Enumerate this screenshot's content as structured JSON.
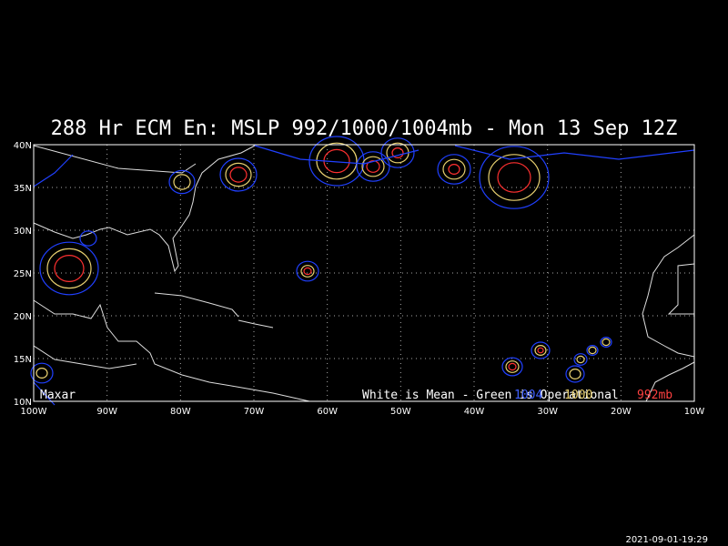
{
  "title": "288 Hr ECM En: MSLP 992/1000/1004mb - Mon 13 Sep 12Z",
  "map": {
    "lon_labels": [
      "100W",
      "90W",
      "80W",
      "70W",
      "60W",
      "50W",
      "40W",
      "30W",
      "20W",
      "10W"
    ],
    "lat_labels": [
      "40N",
      "35N",
      "30N",
      "25N",
      "20N",
      "15N",
      "10N"
    ]
  },
  "credit": "Maxar",
  "legend": {
    "mean": "White is Mean - Green is Operational",
    "blue": "1004",
    "yellow": "1000",
    "red": "992mb"
  },
  "timestamp": "2021-09-01-19:29"
}
